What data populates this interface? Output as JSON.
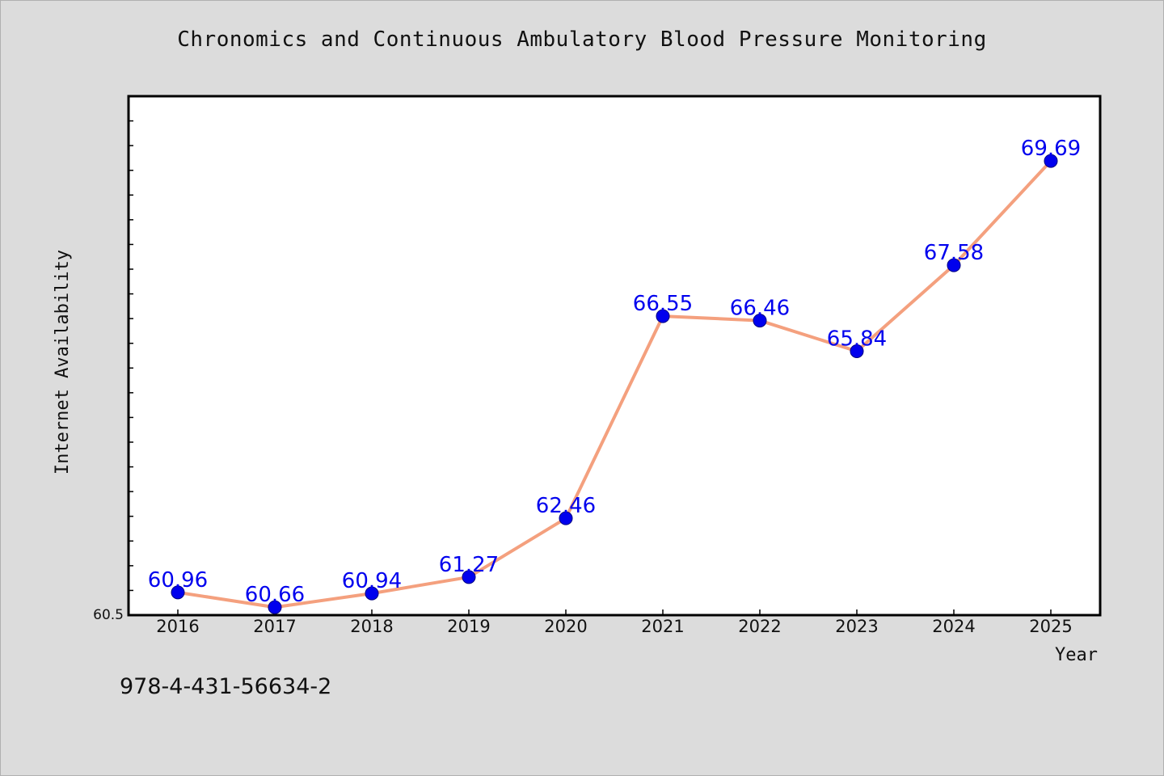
{
  "chart_data": {
    "type": "line",
    "title": "Chronomics and Continuous Ambulatory Blood Pressure Monitoring",
    "xlabel": "Year",
    "ylabel": "Internet Availability",
    "categories": [
      "2016",
      "2017",
      "2018",
      "2019",
      "2020",
      "2021",
      "2022",
      "2023",
      "2024",
      "2025"
    ],
    "series": [
      {
        "values": [
          60.96,
          60.66,
          60.94,
          61.27,
          62.46,
          66.55,
          66.46,
          65.84,
          67.58,
          69.69
        ],
        "labels": [
          "60.96",
          "60.66",
          "60.94",
          "61.27",
          "62.46",
          "66.55",
          "66.46",
          "65.84",
          "67.58",
          "69.69"
        ]
      }
    ],
    "ylim": [
      60.5,
      71.0
    ],
    "y_min_label": "60.5",
    "grid": false,
    "line_color": "#f4a07e",
    "marker_color": "#0000ee",
    "label_color": "#0000ee"
  },
  "footer": {
    "code": "978-4-431-56634-2"
  }
}
